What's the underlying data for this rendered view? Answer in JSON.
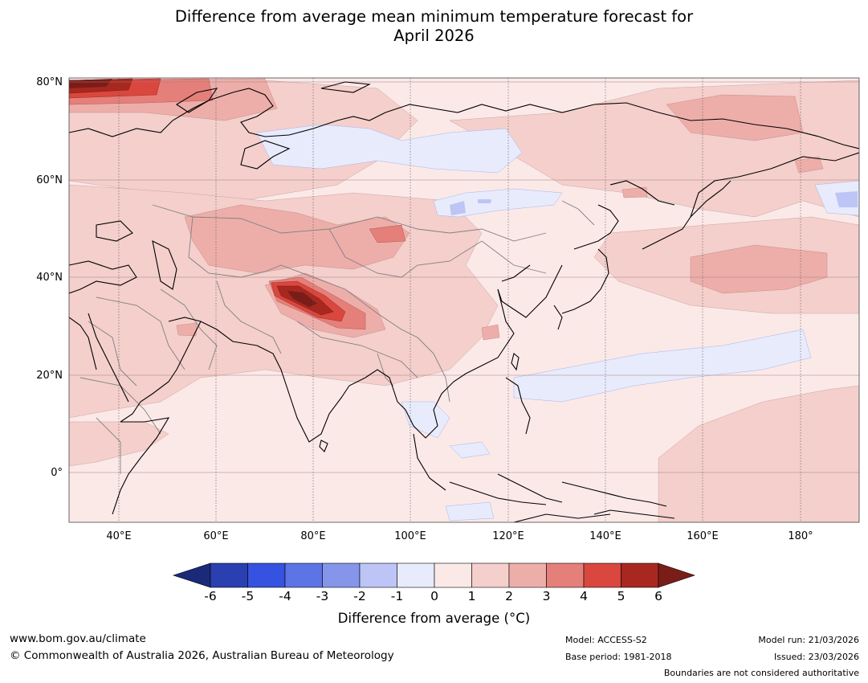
{
  "title": {
    "line1": "Difference from average mean minimum temperature forecast for",
    "line2": "April 2026"
  },
  "map": {
    "lat_labels": [
      "80°N",
      "60°N",
      "40°N",
      "20°N",
      "0°"
    ],
    "lon_labels": [
      "40°E",
      "60°E",
      "80°E",
      "100°E",
      "120°E",
      "140°E",
      "160°E",
      "180°"
    ],
    "extent": {
      "lon_min": 30,
      "lon_max": 191,
      "lat_min": -10,
      "lat_max": 81
    }
  },
  "colorbar": {
    "ticks": [
      "-6",
      "-5",
      "-4",
      "-3",
      "-2",
      "-1",
      "0",
      "1",
      "2",
      "3",
      "4",
      "5",
      "6"
    ],
    "colors": [
      "#1b2a78",
      "#2a3fb0",
      "#3552e0",
      "#5c74e4",
      "#8596ea",
      "#bcc5f5",
      "#e8ebfb",
      "#fbe9e8",
      "#f4cfcc",
      "#edaeaa",
      "#e57f7a",
      "#d9473e",
      "#a8281f",
      "#7a1d18"
    ],
    "label": "Difference from average (°C)"
  },
  "footer": {
    "website": "www.bom.gov.au/climate",
    "copyright": "© Commonwealth of Australia 2026, Australian Bureau of Meteorology",
    "model": "Model: ACCESS-S2",
    "base_period": "Base period: 1981-2018",
    "model_run": "Model run: 21/03/2026",
    "issued": "Issued: 23/03/2026",
    "disclaimer": "Boundaries are not considered authoritative"
  }
}
